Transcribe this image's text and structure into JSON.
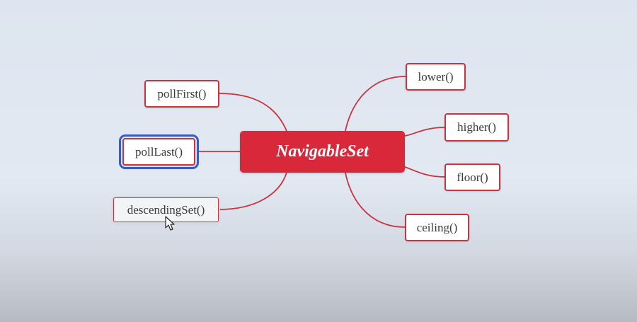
{
  "diagram": {
    "central": {
      "label": "NavigableSet"
    },
    "left_nodes": [
      {
        "label": "pollFirst()",
        "state": "normal"
      },
      {
        "label": "pollLast()",
        "state": "selected"
      },
      {
        "label": "descendingSet()",
        "state": "hovered"
      }
    ],
    "right_nodes": [
      {
        "label": "lower()",
        "state": "normal"
      },
      {
        "label": "higher()",
        "state": "normal"
      },
      {
        "label": "floor()",
        "state": "normal"
      },
      {
        "label": "ceiling()",
        "state": "normal"
      }
    ],
    "colors": {
      "accent_red": "#d8283a",
      "connector_red": "#c9343e",
      "selection_blue": "#3b5bc4"
    },
    "pointer": "mouse-cursor-icon"
  }
}
